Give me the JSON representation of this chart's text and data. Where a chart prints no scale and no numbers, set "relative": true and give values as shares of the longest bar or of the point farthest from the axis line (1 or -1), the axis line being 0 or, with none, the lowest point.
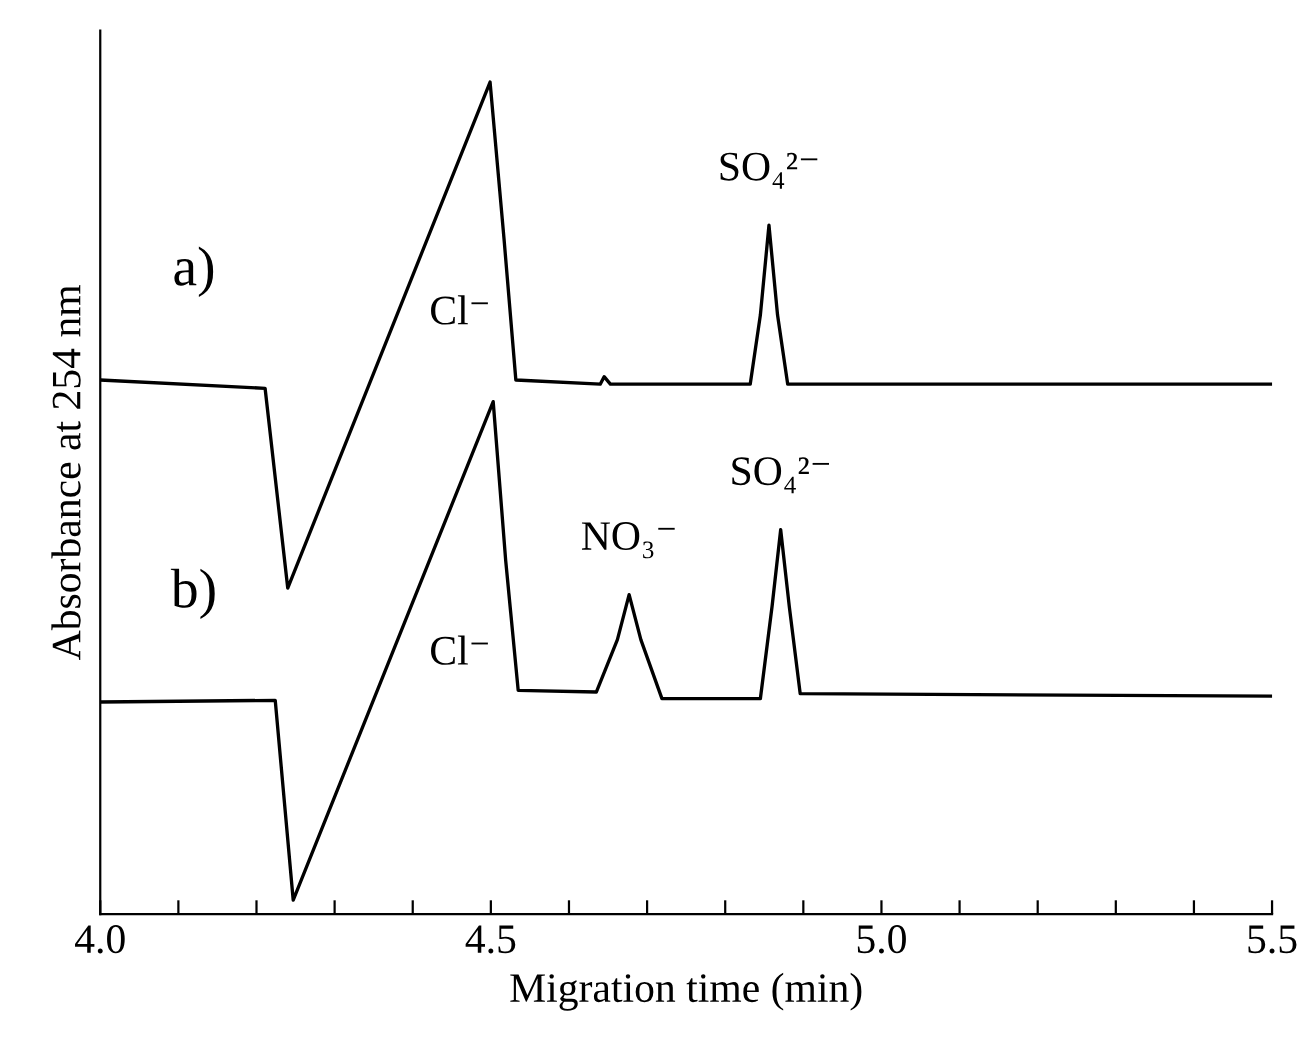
{
  "chart_data": {
    "type": "line",
    "relative": true,
    "xlabel": "Migration time (min)",
    "ylabel": "Absorbance at 254 nm",
    "xlim": [
      4.0,
      5.5
    ],
    "xticks": [
      {
        "value": 4.0,
        "label": "4.0"
      },
      {
        "value": 4.1,
        "label": null
      },
      {
        "value": 4.2,
        "label": null
      },
      {
        "value": 4.3,
        "label": null
      },
      {
        "value": 4.4,
        "label": null
      },
      {
        "value": 4.5,
        "label": "4.5"
      },
      {
        "value": 4.6,
        "label": null
      },
      {
        "value": 4.7,
        "label": null
      },
      {
        "value": 4.8,
        "label": null
      },
      {
        "value": 4.9,
        "label": null
      },
      {
        "value": 5.0,
        "label": "5.0"
      },
      {
        "value": 5.1,
        "label": null
      },
      {
        "value": 5.2,
        "label": null
      },
      {
        "value": 5.3,
        "label": null
      },
      {
        "value": 5.4,
        "label": null
      },
      {
        "value": 5.5,
        "label": "5.5"
      }
    ],
    "tick_labels": "x",
    "marker": "none",
    "line_style": "solid",
    "grid": false,
    "legend": false,
    "series": [
      {
        "name": "a)",
        "color": "#000000",
        "x": [
          4.0,
          4.211,
          4.24,
          4.499,
          4.517,
          4.532,
          4.64,
          4.645,
          4.653,
          4.832,
          4.845,
          4.856,
          4.867,
          4.88,
          5.5
        ],
        "values": [
          0.642,
          0.632,
          0.392,
          1.0,
          0.81,
          0.642,
          0.637,
          0.646,
          0.637,
          0.637,
          0.72,
          0.828,
          0.72,
          0.637,
          0.637
        ]
      },
      {
        "name": "b)",
        "color": "#000000",
        "x": [
          4.0,
          4.224,
          4.247,
          4.503,
          4.519,
          4.535,
          4.635,
          4.662,
          4.677,
          4.692,
          4.719,
          4.845,
          4.86,
          4.871,
          4.882,
          4.896,
          5.5
        ],
        "values": [
          0.255,
          0.257,
          0.017,
          0.616,
          0.425,
          0.269,
          0.267,
          0.33,
          0.384,
          0.33,
          0.259,
          0.259,
          0.37,
          0.462,
          0.37,
          0.265,
          0.262
        ]
      }
    ],
    "annotations": [
      "Cl⁻",
      {
        "text": "SO₄²⁻",
        "x": 4.856,
        "y": 0.828
      },
      "Cl⁻",
      {
        "text": "NO₃⁻",
        "x": 4.677,
        "y": 0.384
      },
      {
        "text": "SO₄²⁻",
        "x": 4.871,
        "y": 0.462
      }
    ]
  }
}
